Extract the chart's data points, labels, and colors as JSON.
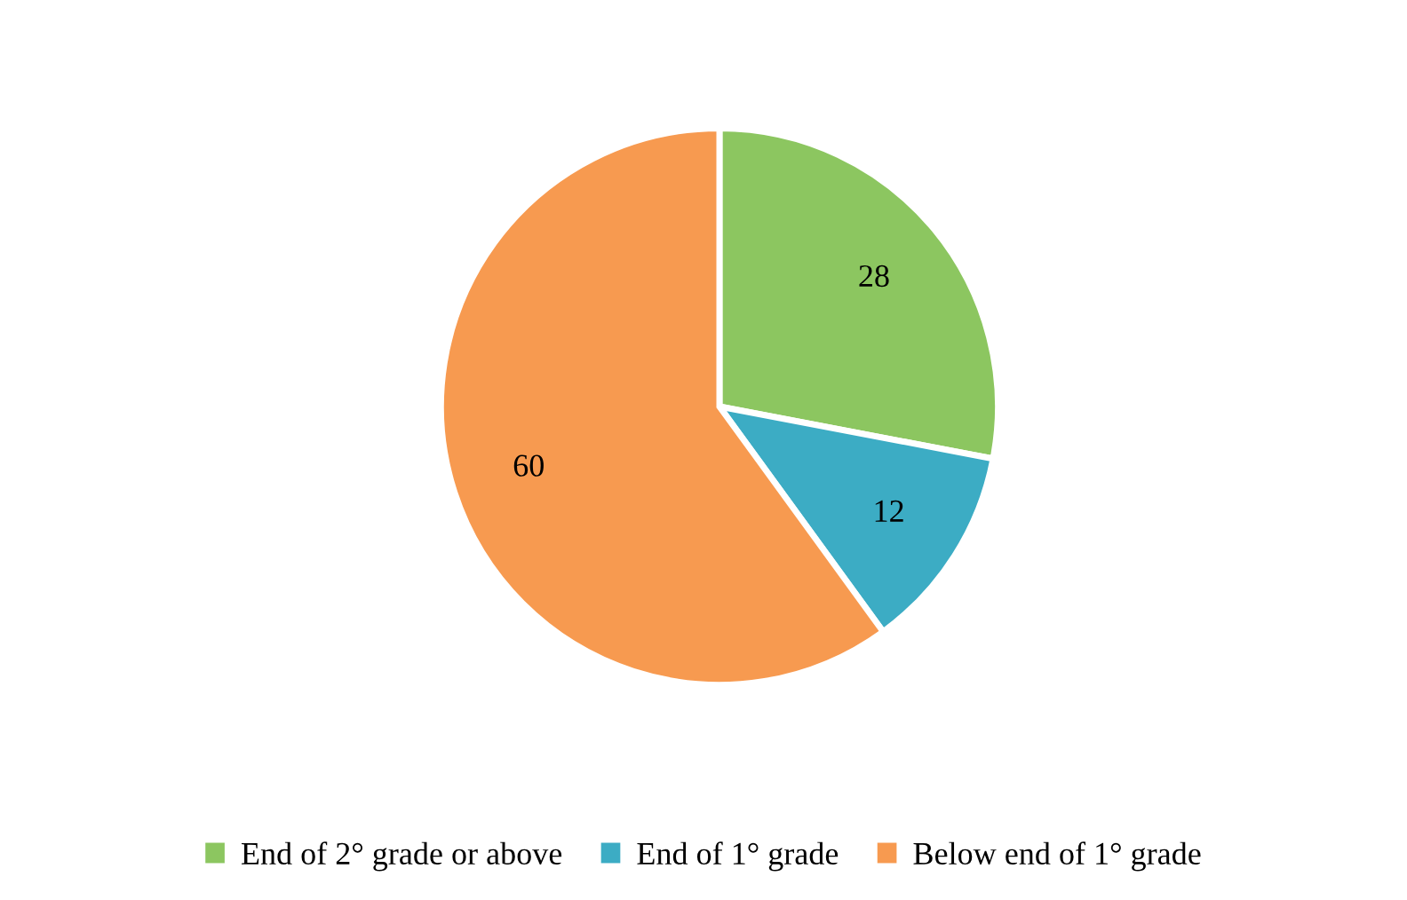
{
  "chart_data": {
    "type": "pie",
    "categories": [
      "End of 2° grade or above",
      "End of 1° grade",
      "Below end of 1° grade"
    ],
    "values": [
      28,
      12,
      60
    ],
    "colors": [
      "#8cc660",
      "#3cacc4",
      "#f79a50"
    ],
    "data_labels": true,
    "legend": "bottom"
  }
}
